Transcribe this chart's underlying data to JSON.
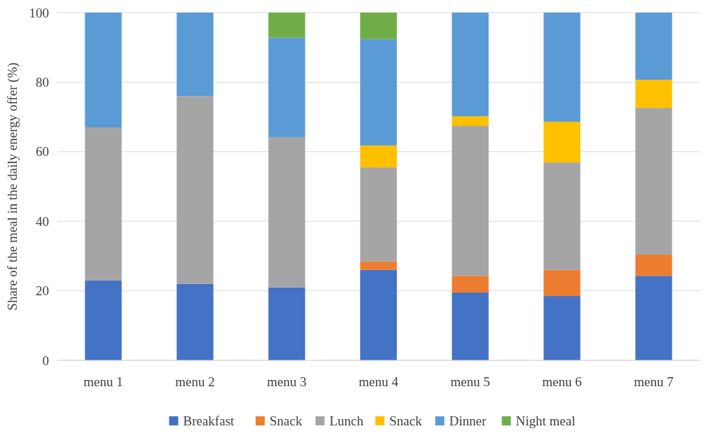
{
  "chart_data": {
    "type": "bar",
    "stacked": true,
    "ylabel": "Share of the meal in the daily energy offer (%)",
    "categories": [
      "menu 1",
      "menu 2",
      "menu 3",
      "menu 4",
      "menu 5",
      "menu 6",
      "menu 7"
    ],
    "series": [
      {
        "name": "Breakfast",
        "color": "#4472c4",
        "values": [
          23,
          22,
          21,
          26,
          19.5,
          18.5,
          24.3
        ]
      },
      {
        "name": "Snack",
        "color": "#ed7d31",
        "values": [
          0,
          0,
          0,
          2.4,
          4.8,
          7.5,
          6.1
        ]
      },
      {
        "name": "Lunch",
        "color": "#a5a5a5",
        "values": [
          44,
          54,
          43.2,
          27.1,
          43.1,
          30.9,
          42.2
        ]
      },
      {
        "name": "Snack",
        "color": "#ffc000",
        "values": [
          0,
          0,
          0,
          6.3,
          2.8,
          11.7,
          8.1
        ]
      },
      {
        "name": "Dinner",
        "color": "#5b9bd5",
        "values": [
          33,
          24,
          28.6,
          30.6,
          29.8,
          31.4,
          19.3
        ]
      },
      {
        "name": "Night meal",
        "color": "#70ad47",
        "values": [
          0,
          0,
          7.2,
          7.6,
          0,
          0,
          0
        ]
      }
    ],
    "ylim": [
      0,
      100
    ],
    "yticks": [
      0,
      20,
      40,
      60,
      80,
      100
    ],
    "grid": "y",
    "legend": "bottom"
  }
}
